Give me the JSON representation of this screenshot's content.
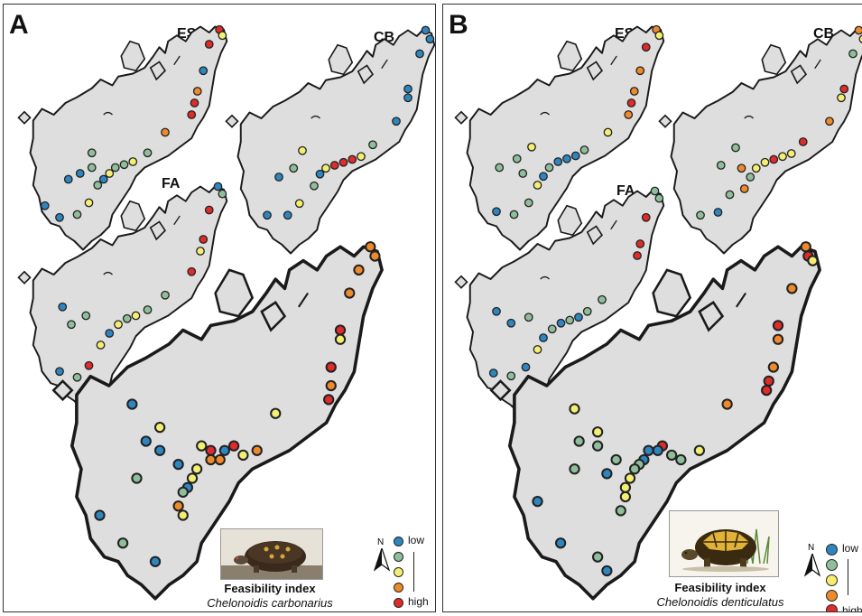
{
  "panels": [
    {
      "label": "A",
      "maps": [
        "ES",
        "CB",
        "FA"
      ],
      "feasibility_title": "Feasibility index",
      "species": "Chelonoidis carbonarius",
      "legend": {
        "low": "low",
        "high": "high"
      },
      "north": "N"
    },
    {
      "label": "B",
      "maps": [
        "ES",
        "CB",
        "FA"
      ],
      "feasibility_title": "Feasibility index",
      "species": "Chelonoidis denticulatus",
      "legend": {
        "low": "low",
        "high": "high"
      },
      "north": "N"
    }
  ],
  "legend_classes": [
    "low",
    "",
    "",
    "",
    "high"
  ],
  "colors": {
    "low": "#2e86c1",
    "mid_low": "#8fbf9a",
    "mid": "#f4ef72",
    "mid_high": "#ef8a2c",
    "high": "#e02b2b",
    "land": "#dedede",
    "coastline": "#1a1a1a"
  },
  "icons": [
    "north-arrow-icon",
    "tortoise-photo-icon"
  ]
}
